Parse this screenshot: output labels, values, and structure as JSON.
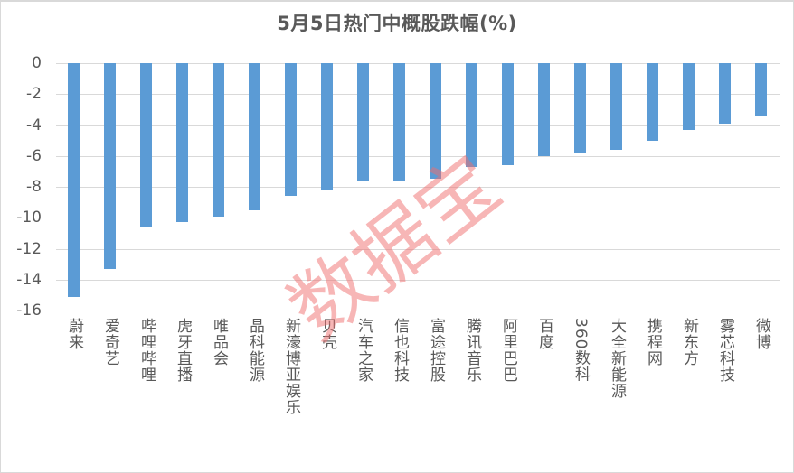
{
  "chart_data": {
    "type": "bar",
    "title": "5月5日热门中概股跌幅(%)",
    "xlabel": "",
    "ylabel": "",
    "ylim": [
      -16,
      0
    ],
    "yticks": [
      0,
      -2,
      -4,
      -6,
      -8,
      -10,
      -12,
      -14,
      -16
    ],
    "grid": true,
    "legend": null,
    "bar_color": "#5b9bd5",
    "categories": [
      "蔚来",
      "爱奇艺",
      "哔哩哔哩",
      "虎牙直播",
      "唯品会",
      "晶科能源",
      "新濠博亚娱乐",
      "贝壳",
      "汽车之家",
      "信也科技",
      "富途控股",
      "腾讯音乐",
      "阿里巴巴",
      "百度",
      "360数科",
      "大全新能源",
      "携程网",
      "新东方",
      "雾芯科技",
      "微博"
    ],
    "values": [
      -15.1,
      -13.3,
      -10.6,
      -10.3,
      -9.9,
      -9.5,
      -8.6,
      -8.2,
      -7.6,
      -7.6,
      -7.5,
      -6.7,
      -6.6,
      -6.0,
      -5.8,
      -5.6,
      -5.0,
      -4.3,
      -3.9,
      -3.4
    ],
    "annotations": [
      "数据宝"
    ]
  },
  "watermark": {
    "text": "数据宝",
    "color": "#f06e6e"
  }
}
